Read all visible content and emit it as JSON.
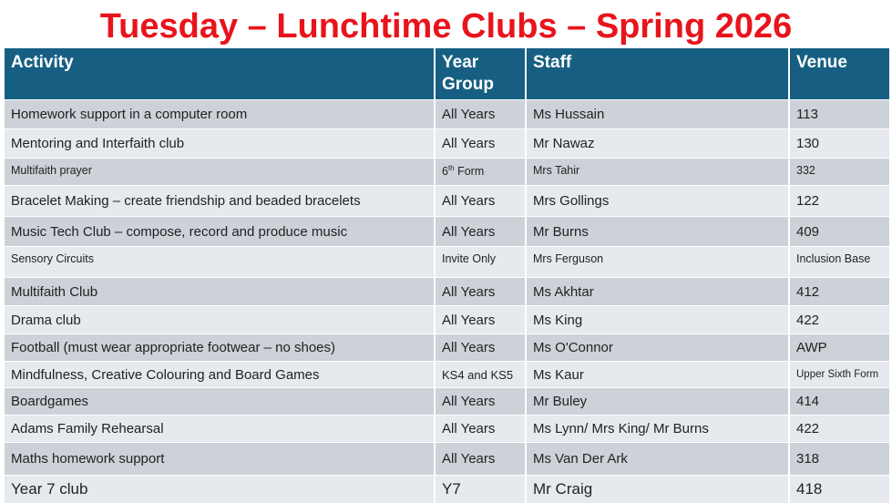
{
  "title": "Tuesday – Lunchtime Clubs – Spring 2026",
  "headers": {
    "activity": "Activity",
    "year_group": "Year Group",
    "staff": "Staff",
    "venue": "Venue"
  },
  "rows": [
    {
      "activity": "Homework support in a computer room",
      "year": "All Years",
      "staff": "Ms Hussain",
      "venue": "113"
    },
    {
      "activity": "Mentoring and Interfaith club",
      "year": "All Years",
      "staff": "Mr Nawaz",
      "venue": "130"
    },
    {
      "activity": "Multifaith prayer",
      "year": "6",
      "year_sup": "th",
      "year_rest": " Form",
      "staff": "Mrs Tahir",
      "venue": "332"
    },
    {
      "activity": "Bracelet Making – create friendship and beaded bracelets",
      "year": "All Years",
      "staff": "Mrs Gollings",
      "venue": "122"
    },
    {
      "activity": "Music Tech Club – compose, record and produce music",
      "year": "All Years",
      "staff": "Mr Burns",
      "venue": "409"
    },
    {
      "activity": "Sensory Circuits",
      "year": "Invite Only",
      "staff": "Mrs Ferguson",
      "venue": "Inclusion Base"
    },
    {
      "activity": "Multifaith Club",
      "year": "All Years",
      "staff": "Ms Akhtar",
      "venue": "412"
    },
    {
      "activity": "Drama club",
      "year": "All Years",
      "staff": "Ms King",
      "venue": "422"
    },
    {
      "activity": "Football (must wear appropriate footwear – no shoes)",
      "year": "All Years",
      "staff": "Ms O'Connor",
      "venue": "AWP"
    },
    {
      "activity": "Mindfulness, Creative Colouring and Board Games",
      "year": "KS4 and KS5",
      "staff": "Ms Kaur",
      "venue": "Upper Sixth Form"
    },
    {
      "activity": "Boardgames",
      "year": "All Years",
      "staff": "Mr Buley",
      "venue": "414"
    },
    {
      "activity": "Adams Family Rehearsal",
      "year": "All Years",
      "staff": "Ms Lynn/ Mrs King/ Mr Burns",
      "venue": "422"
    },
    {
      "activity": "Maths homework support",
      "year": "All Years",
      "staff": "Ms Van Der Ark",
      "venue": "318"
    },
    {
      "activity": "Year 7 club",
      "year": "Y7",
      "staff": "Mr Craig",
      "venue": "418"
    }
  ],
  "colors": {
    "title": "#e8141c",
    "header": "#175f82",
    "row_dark": "#cdd2d9",
    "row_light": "#e6e9ed"
  }
}
